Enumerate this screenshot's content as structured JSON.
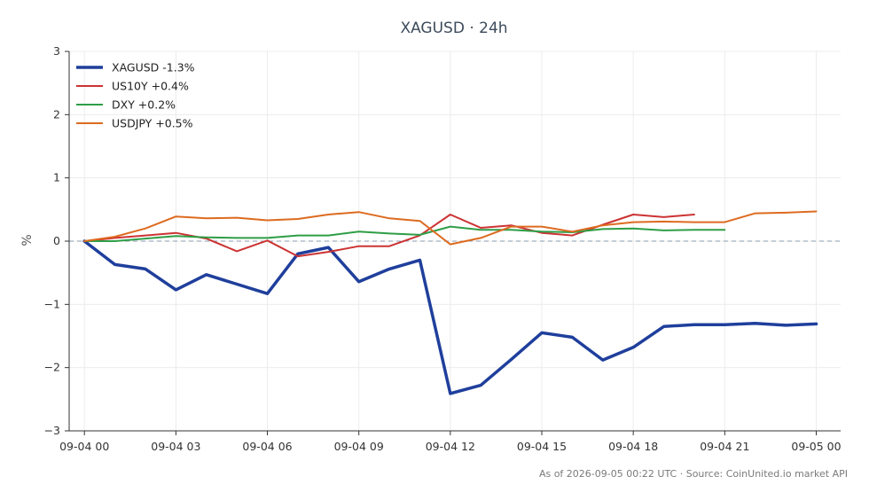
{
  "chart_data": {
    "type": "line",
    "title": "XAGUSD · 24h",
    "ylabel": "%",
    "xlabel": "",
    "ylim": [
      -3,
      3
    ],
    "yticks": [
      3,
      2,
      1,
      0,
      -1,
      -2,
      -3
    ],
    "ytick_labels": [
      "3",
      "2",
      "1",
      "0",
      "−1",
      "−2",
      "−3"
    ],
    "x_range": [
      -0.5,
      24.8
    ],
    "xticks": [
      0,
      3,
      6,
      9,
      12,
      15,
      18,
      21,
      24
    ],
    "xtick_labels": [
      "09-04 00",
      "09-04 03",
      "09-04 06",
      "09-04 09",
      "09-04 12",
      "09-04 15",
      "09-04 18",
      "09-04 21",
      "09-05 00"
    ],
    "x": [
      "09-04 00",
      "09-04 01",
      "09-04 02",
      "09-04 03",
      "09-04 04",
      "09-04 05",
      "09-04 06",
      "09-04 07",
      "09-04 08",
      "09-04 09",
      "09-04 10",
      "09-04 11",
      "09-04 12",
      "09-04 13",
      "09-04 14",
      "09-04 15",
      "09-04 16",
      "09-04 17",
      "09-04 18",
      "09-04 19",
      "09-04 20",
      "09-04 21",
      "09-04 22",
      "09-04 23",
      "09-05 00"
    ],
    "grid": true,
    "zero_line": true,
    "legend_position": "top-left",
    "series": [
      {
        "name": "XAGUSD -1.3%",
        "color": "#1f3f9c",
        "width": 3.5,
        "values": [
          0.0,
          -0.37,
          -0.44,
          -0.77,
          -0.53,
          -0.68,
          -0.83,
          -0.2,
          -0.1,
          -0.64,
          -0.44,
          -0.3,
          -2.41,
          -2.28,
          -1.87,
          -1.45,
          -1.52,
          -1.88,
          -1.68,
          -1.35,
          -1.32,
          -1.32,
          -1.3,
          -1.33,
          -1.31
        ]
      },
      {
        "name": "US10Y +0.4%",
        "color": "#cc3333",
        "width": 2,
        "values": [
          0.0,
          0.05,
          0.09,
          0.13,
          0.04,
          -0.16,
          0.01,
          -0.24,
          -0.17,
          -0.08,
          -0.08,
          0.09,
          0.42,
          0.21,
          0.25,
          0.13,
          0.09,
          0.26,
          0.42,
          0.38,
          0.42,
          null,
          null,
          null,
          null
        ]
      },
      {
        "name": "DXY +0.2%",
        "color": "#2e9e46",
        "width": 2,
        "values": [
          0.0,
          0.0,
          0.04,
          0.08,
          0.06,
          0.05,
          0.05,
          0.09,
          0.09,
          0.15,
          0.12,
          0.1,
          0.23,
          0.18,
          0.18,
          0.15,
          0.14,
          0.19,
          0.2,
          0.17,
          0.18,
          0.18,
          null,
          null,
          null
        ]
      },
      {
        "name": "USDJPY +0.5%",
        "color": "#dd6b20",
        "width": 2,
        "values": [
          0.0,
          0.07,
          0.2,
          0.39,
          0.36,
          0.37,
          0.33,
          0.35,
          0.42,
          0.46,
          0.36,
          0.32,
          -0.05,
          0.05,
          0.23,
          0.23,
          0.15,
          0.25,
          0.3,
          0.31,
          0.3,
          0.3,
          0.44,
          0.45,
          0.47
        ]
      }
    ]
  },
  "footer": {
    "note": "As of 2026-09-05 00:22 UTC · Source: CoinUnited.io market API"
  }
}
